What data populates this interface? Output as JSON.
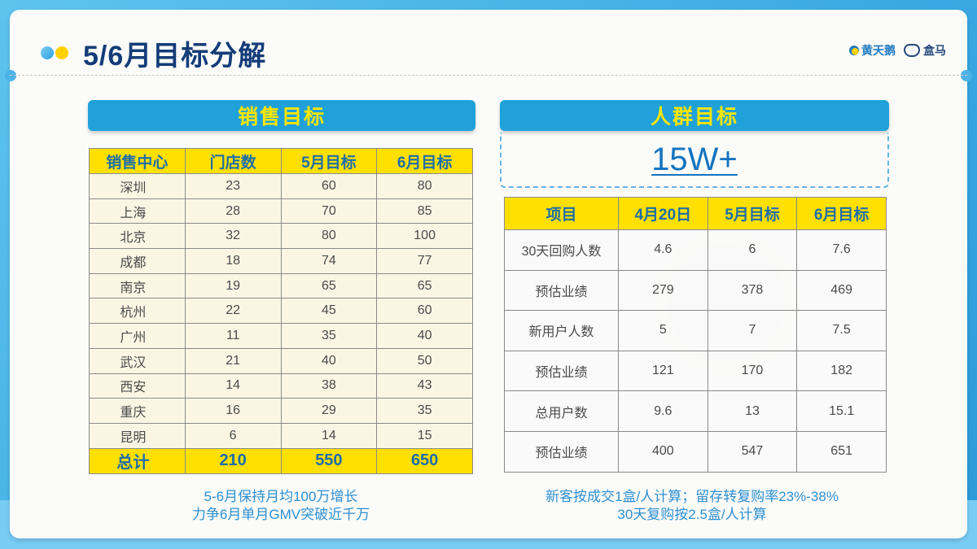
{
  "page": {
    "title": "5/6月目标分解",
    "logos": [
      "黄天鹅",
      "盒马"
    ]
  },
  "colors": {
    "background_blue": "#3aa9e2",
    "title_navy": "#143c78",
    "banner_blue": "#20a1d9",
    "banner_text_yellow": "#ffe600",
    "header_yellow": "#ffe000",
    "header_text_blue": "#1d6ea8",
    "note_blue": "#2e8fd0"
  },
  "sales": {
    "title": "销售目标",
    "columns": [
      "销售中心",
      "门店数",
      "5月目标",
      "6月目标"
    ],
    "rows": [
      [
        "深圳",
        "23",
        "60",
        "80"
      ],
      [
        "上海",
        "28",
        "70",
        "85"
      ],
      [
        "北京",
        "32",
        "80",
        "100"
      ],
      [
        "成都",
        "18",
        "74",
        "77"
      ],
      [
        "南京",
        "19",
        "65",
        "65"
      ],
      [
        "杭州",
        "22",
        "45",
        "60"
      ],
      [
        "广州",
        "11",
        "35",
        "40"
      ],
      [
        "武汉",
        "21",
        "40",
        "50"
      ],
      [
        "西安",
        "14",
        "38",
        "43"
      ],
      [
        "重庆",
        "16",
        "29",
        "35"
      ],
      [
        "昆明",
        "6",
        "14",
        "15"
      ]
    ],
    "total": [
      "总计",
      "210",
      "550",
      "650"
    ],
    "notes": [
      "5-6月保持月均100万增长",
      "力争6月单月GMV突破近千万"
    ]
  },
  "crowd": {
    "title": "人群目标",
    "headline": "15W+",
    "columns": [
      "项目",
      "4月20日",
      "5月目标",
      "6月目标"
    ],
    "rows": [
      [
        "30天回购人数",
        "4.6",
        "6",
        "7.6"
      ],
      [
        "预估业绩",
        "279",
        "378",
        "469"
      ],
      [
        "新用户人数",
        "5",
        "7",
        "7.5"
      ],
      [
        "预估业绩",
        "121",
        "170",
        "182"
      ],
      [
        "总用户数",
        "9.6",
        "13",
        "15.1"
      ],
      [
        "预估业绩",
        "400",
        "547",
        "651"
      ]
    ],
    "notes": [
      "新客按成交1盒/人计算；留存转复购率23%-38%",
      "30天复购按2.5盒/人计算"
    ]
  }
}
